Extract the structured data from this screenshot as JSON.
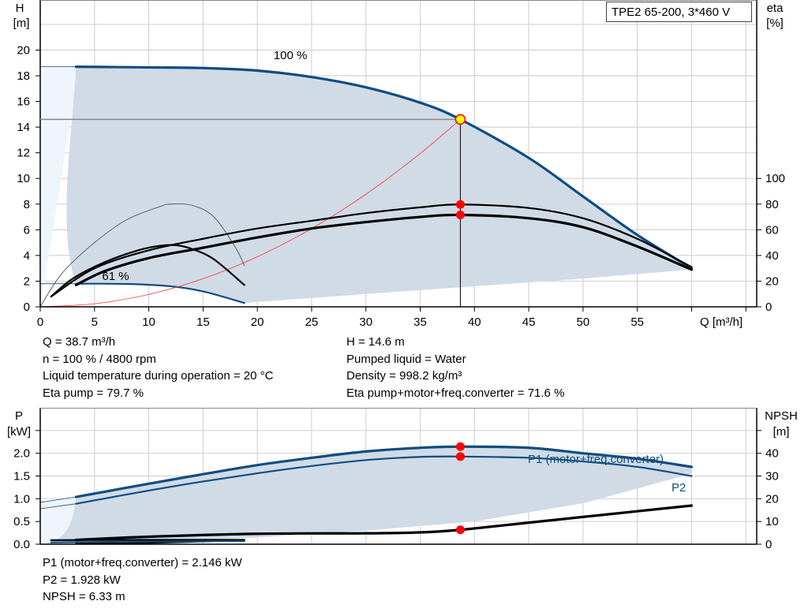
{
  "title": "TPE2 65-200, 3*460 V",
  "colors": {
    "curve_blue": "#0f4c81",
    "fill": "#d0dbe6",
    "fill_light": "#eef5fc",
    "grid": "#d4d4d4",
    "red": "#ff0000",
    "op_point": "#ffff00"
  },
  "chart_data": [
    {
      "type": "line",
      "name": "head-efficiency",
      "xlabel": "Q [m³/h]",
      "ylabel_left": [
        "H",
        "[m]"
      ],
      "ylabel_right": [
        "eta",
        "[%]"
      ],
      "xlim": [
        0,
        66
      ],
      "ylim_left": [
        0,
        23.9
      ],
      "ylim_right": [
        0,
        239
      ],
      "x_ticks": [
        0,
        5,
        10,
        15,
        20,
        25,
        30,
        35,
        40,
        45,
        50,
        55
      ],
      "x_tick_marks": [
        60,
        65
      ],
      "y_ticks_left": [
        0,
        2,
        4,
        6,
        8,
        10,
        12,
        14,
        16,
        18,
        20
      ],
      "y_ticks_right": [
        0,
        20,
        40,
        60,
        80,
        100
      ],
      "grid": true,
      "annotations": [
        {
          "text": "100 %",
          "x": 21.5,
          "y": 19.3
        },
        {
          "text": "61 %",
          "x": 5.7,
          "y": 2.1
        }
      ],
      "series": [
        {
          "id": "h_max",
          "axis": "left",
          "style": "blue-thick",
          "points": [
            [
              3.3,
              18.7
            ],
            [
              10,
              18.65
            ],
            [
              15,
              18.6
            ],
            [
              20,
              18.4
            ],
            [
              25,
              17.9
            ],
            [
              30,
              17.1
            ],
            [
              35,
              15.9
            ],
            [
              38.7,
              14.6
            ],
            [
              45,
              11.6
            ],
            [
              50,
              8.6
            ],
            [
              55,
              5.6
            ],
            [
              60,
              3.0
            ]
          ]
        },
        {
          "id": "h_max_ext",
          "axis": "left",
          "style": "blue-thin",
          "points": [
            [
              0,
              18.7
            ],
            [
              3.3,
              18.7
            ]
          ]
        },
        {
          "id": "h_min",
          "axis": "left",
          "style": "blue",
          "points": [
            [
              3.3,
              1.8
            ],
            [
              8,
              1.78
            ],
            [
              12,
              1.6
            ],
            [
              15,
              1.2
            ],
            [
              18.8,
              0.3
            ]
          ]
        },
        {
          "id": "h_min_ext",
          "axis": "left",
          "style": "blue-thin",
          "points": [
            [
              0,
              1.8
            ],
            [
              3.3,
              1.8
            ]
          ]
        },
        {
          "id": "range_limit",
          "axis": "left",
          "style": "none",
          "points": [
            [
              18.8,
              0.3
            ],
            [
              30,
              1.0
            ],
            [
              40,
              1.6
            ],
            [
              50,
              2.2
            ],
            [
              60,
              2.9
            ]
          ]
        },
        {
          "id": "system_curve",
          "axis": "left",
          "style": "red-thin",
          "points": [
            [
              0,
              0
            ],
            [
              5,
              0.24
            ],
            [
              10,
              0.97
            ],
            [
              15,
              2.19
            ],
            [
              20,
              3.9
            ],
            [
              25,
              6.09
            ],
            [
              30,
              8.77
            ],
            [
              35,
              11.94
            ],
            [
              38.7,
              14.6
            ]
          ]
        },
        {
          "id": "eta_pump",
          "axis": "right",
          "style": "black",
          "points": [
            [
              1,
              8
            ],
            [
              5,
              30
            ],
            [
              10,
              44
            ],
            [
              15,
              53
            ],
            [
              20,
              61
            ],
            [
              25,
              67
            ],
            [
              30,
              73
            ],
            [
              35,
              77.5
            ],
            [
              38.7,
              79.7
            ],
            [
              45,
              77
            ],
            [
              50,
              69
            ],
            [
              55,
              53
            ],
            [
              60,
              31
            ]
          ]
        },
        {
          "id": "eta_total",
          "axis": "right",
          "style": "black-thick",
          "points": [
            [
              3.3,
              17
            ],
            [
              6,
              28
            ],
            [
              10,
              38
            ],
            [
              15,
              46
            ],
            [
              20,
              54
            ],
            [
              25,
              61
            ],
            [
              30,
              66
            ],
            [
              35,
              70
            ],
            [
              38.7,
              71.6
            ],
            [
              45,
              69
            ],
            [
              50,
              62
            ],
            [
              55,
              47
            ],
            [
              60,
              29
            ]
          ]
        },
        {
          "id": "eta_pump_min",
          "axis": "right",
          "style": "black-thin",
          "points": [
            [
              0,
              0
            ],
            [
              2,
              26
            ],
            [
              5,
              50
            ],
            [
              8,
              68
            ],
            [
              11,
              78
            ],
            [
              12,
              80
            ],
            [
              14,
              79
            ],
            [
              16,
              70
            ],
            [
              18,
              46
            ],
            [
              18.8,
              32
            ]
          ]
        },
        {
          "id": "eta_total_min",
          "axis": "right",
          "style": "black",
          "points": [
            [
              1,
              8
            ],
            [
              3,
              22
            ],
            [
              6,
              35
            ],
            [
              9,
              44
            ],
            [
              11,
              47.5
            ],
            [
              12.5,
              48
            ],
            [
              14,
              45
            ],
            [
              16,
              37
            ],
            [
              18.8,
              17
            ]
          ]
        }
      ],
      "operating_point": {
        "Q": 38.7,
        "H": 14.6,
        "eta_pump": 79.7,
        "eta_total": 71.6
      }
    },
    {
      "type": "line",
      "name": "power-npsh",
      "ylabel_left": [
        "P",
        "[kW]"
      ],
      "ylabel_right": [
        "NPSH",
        "[m]"
      ],
      "xlim": [
        0,
        66
      ],
      "ylim_left": [
        0,
        3.0
      ],
      "ylim_right": [
        0,
        60
      ],
      "y_ticks_left": [
        "0.0",
        "0.5",
        "1.0",
        "1.5",
        "2.0"
      ],
      "y_tick_marks_left": [
        2.5
      ],
      "y_ticks_right": [
        0,
        10,
        20,
        30,
        40
      ],
      "grid": true,
      "series": [
        {
          "id": "p1",
          "name": "P1 (motor+freq.converter)",
          "axis": "left",
          "style": "blue-thick",
          "points": [
            [
              3.3,
              1.04
            ],
            [
              10,
              1.33
            ],
            [
              15,
              1.54
            ],
            [
              20,
              1.74
            ],
            [
              25,
              1.9
            ],
            [
              30,
              2.04
            ],
            [
              35,
              2.12
            ],
            [
              38.7,
              2.146
            ],
            [
              45,
              2.12
            ],
            [
              50,
              2.0
            ],
            [
              55,
              1.88
            ],
            [
              60,
              1.7
            ]
          ]
        },
        {
          "id": "p1_ext",
          "axis": "left",
          "style": "blue-thin",
          "points": [
            [
              0,
              0.92
            ],
            [
              3.3,
              1.04
            ]
          ]
        },
        {
          "id": "p2",
          "name": "P2",
          "axis": "left",
          "style": "blue",
          "points": [
            [
              3.3,
              0.89
            ],
            [
              10,
              1.18
            ],
            [
              15,
              1.38
            ],
            [
              20,
              1.56
            ],
            [
              25,
              1.72
            ],
            [
              30,
              1.85
            ],
            [
              35,
              1.92
            ],
            [
              38.7,
              1.928
            ],
            [
              45,
              1.9
            ],
            [
              50,
              1.82
            ],
            [
              55,
              1.7
            ],
            [
              60,
              1.5
            ]
          ]
        },
        {
          "id": "p2_ext",
          "axis": "left",
          "style": "blue-thin",
          "points": [
            [
              0,
              0.78
            ],
            [
              3.3,
              0.89
            ]
          ]
        },
        {
          "id": "range_limit",
          "axis": "left",
          "style": "none",
          "points": [
            [
              0,
              0
            ],
            [
              10,
              0.05
            ],
            [
              20,
              0.15
            ],
            [
              30,
              0.3
            ],
            [
              40,
              0.5
            ],
            [
              50,
              0.9
            ],
            [
              60,
              1.55
            ]
          ]
        },
        {
          "id": "npsh",
          "axis": "right",
          "style": "black-thick",
          "points": [
            [
              3.3,
              1.9
            ],
            [
              10,
              3.3
            ],
            [
              20,
              4.6
            ],
            [
              30,
              4.8
            ],
            [
              35,
              5.2
            ],
            [
              38.7,
              6.33
            ],
            [
              45,
              9.5
            ],
            [
              50,
              12
            ],
            [
              55,
              14.5
            ],
            [
              60,
              17
            ]
          ]
        },
        {
          "id": "npsh_min",
          "axis": "right",
          "style": "black",
          "points": [
            [
              1,
              1.8
            ],
            [
              10,
              1.9
            ],
            [
              18.8,
              1.9
            ]
          ]
        },
        {
          "id": "npsh_min2",
          "axis": "right",
          "style": "black",
          "points": [
            [
              3.3,
              0.2
            ],
            [
              10,
              0.6
            ],
            [
              18.8,
              1.8
            ]
          ]
        },
        {
          "id": "p_min",
          "axis": "left",
          "style": "blue",
          "points": [
            [
              1,
              0.04
            ],
            [
              10,
              0.06
            ],
            [
              18.8,
              0.07
            ]
          ]
        }
      ],
      "operating_point": {
        "P1": 2.146,
        "P2": 1.928,
        "NPSH": 6.33
      }
    }
  ],
  "info_top": {
    "left": [
      "Q = 38.7 m³/h",
      "n = 100 % / 4800 rpm",
      "Liquid temperature during operation = 20 °C",
      "Eta pump = 79.7 %"
    ],
    "right": [
      "H = 14.6 m",
      "Pumped liquid = Water",
      "Density = 998.2 kg/m³",
      "Eta pump+motor+freq.converter = 71.6 %"
    ]
  },
  "info_bottom": [
    "P1 (motor+freq.converter) = 2.146 kW",
    "P2 = 1.928 kW",
    "NPSH = 6.33 m"
  ]
}
